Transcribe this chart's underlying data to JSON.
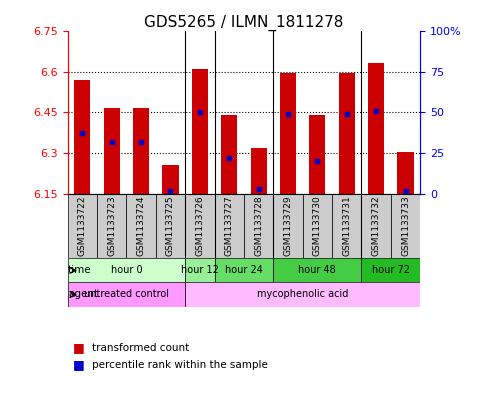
{
  "title": "GDS5265 / ILMN_1811278",
  "samples": [
    "GSM1133722",
    "GSM1133723",
    "GSM1133724",
    "GSM1133725",
    "GSM1133726",
    "GSM1133727",
    "GSM1133728",
    "GSM1133729",
    "GSM1133730",
    "GSM1133731",
    "GSM1133732",
    "GSM1133733"
  ],
  "bar_tops": [
    6.57,
    6.465,
    6.465,
    6.255,
    6.61,
    6.44,
    6.32,
    6.595,
    6.44,
    6.595,
    6.635,
    6.305
  ],
  "bar_bottom": 6.15,
  "blue_markers": [
    6.375,
    6.34,
    6.34,
    6.16,
    6.45,
    6.28,
    6.165,
    6.445,
    6.27,
    6.445,
    6.455,
    6.16
  ],
  "ylim": [
    6.15,
    6.75
  ],
  "yticks_left": [
    6.15,
    6.3,
    6.45,
    6.6,
    6.75
  ],
  "yticks_right_pct": [
    0,
    25,
    50,
    75,
    100
  ],
  "ytick_labels_right": [
    "0",
    "25",
    "50",
    "75",
    "100%"
  ],
  "bar_color": "#cc0000",
  "blue_color": "#0000cc",
  "time_groups": [
    {
      "label": "hour 0",
      "start": 0,
      "end": 4,
      "color": "#ccffcc"
    },
    {
      "label": "hour 12",
      "start": 4,
      "end": 5,
      "color": "#99ee99"
    },
    {
      "label": "hour 24",
      "start": 5,
      "end": 7,
      "color": "#66dd66"
    },
    {
      "label": "hour 48",
      "start": 7,
      "end": 10,
      "color": "#44cc44"
    },
    {
      "label": "hour 72",
      "start": 10,
      "end": 12,
      "color": "#22bb22"
    }
  ],
  "agent_groups": [
    {
      "label": "untreated control",
      "start": 0,
      "end": 4,
      "color": "#ff99ff"
    },
    {
      "label": "mycophenolic acid",
      "start": 4,
      "end": 12,
      "color": "#ffbbff"
    }
  ],
  "group_dividers": [
    4,
    5,
    7,
    10
  ],
  "legend_tc": "transformed count",
  "legend_pr": "percentile rank within the sample",
  "bg_color": "#ffffff",
  "bar_width": 0.55,
  "tick_fontsize": 8,
  "title_fontsize": 11,
  "sample_box_color": "#cccccc"
}
